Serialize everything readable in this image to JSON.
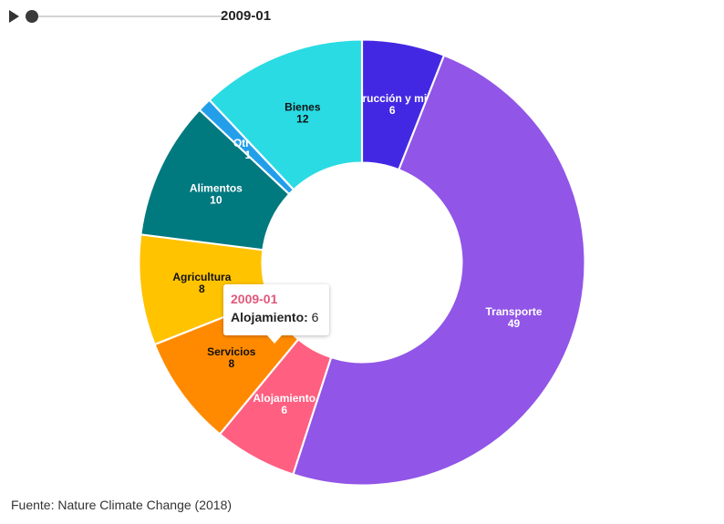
{
  "controls": {
    "play_icon": "play-icon",
    "period": "2009-01"
  },
  "chart_data": {
    "type": "pie",
    "donut": true,
    "series": [
      {
        "label": "Construcción y minería",
        "value": 6,
        "color": "#4328e3",
        "text_color": "#ffffff"
      },
      {
        "label": "Transporte",
        "value": 49,
        "color": "#9155e7",
        "text_color": "#ffffff"
      },
      {
        "label": "Alojamiento",
        "value": 6,
        "color": "#ff5f80",
        "text_color": "#ffffff"
      },
      {
        "label": "Servicios",
        "value": 8,
        "color": "#ff8a00",
        "text_color": "#111111"
      },
      {
        "label": "Agricultura",
        "value": 8,
        "color": "#ffc300",
        "text_color": "#111111"
      },
      {
        "label": "Alimentos",
        "value": 10,
        "color": "#00797f",
        "text_color": "#ffffff"
      },
      {
        "label": "Otros",
        "value": 1,
        "color": "#239fea",
        "text_color": "#ffffff"
      },
      {
        "label": "Bienes",
        "value": 12,
        "color": "#2adbe3",
        "text_color": "#111111"
      }
    ]
  },
  "tooltip": {
    "title": "2009-01",
    "label": "Alojamiento:",
    "value": "6"
  },
  "footer": {
    "source": "Fuente: Nature Climate Change (2018)"
  }
}
